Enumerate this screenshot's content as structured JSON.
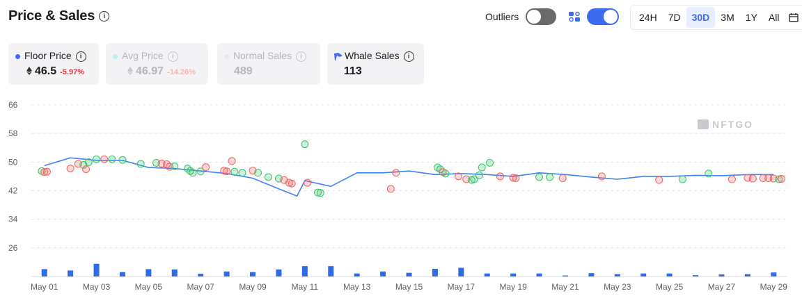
{
  "header": {
    "title": "Price & Sales",
    "outliers_label": "Outliers",
    "ranges": [
      "24H",
      "7D",
      "30D",
      "3M",
      "1Y",
      "All"
    ],
    "active_range": "30D"
  },
  "cards": {
    "floor": {
      "label": "Floor Price",
      "value": "46.5",
      "change": "-5.97%"
    },
    "avg": {
      "label": "Avg Price",
      "value": "46.97",
      "change": "-14.26%"
    },
    "normal": {
      "label": "Normal Sales",
      "value": "489"
    },
    "whale": {
      "label": "Whale Sales",
      "value": "113"
    }
  },
  "watermark": "NFTGO",
  "colors": {
    "accent": "#3d6bf0",
    "bar": "#2f6be8",
    "line": "#3b82f6",
    "negative": "#e23b3b",
    "buy": "#3bc46a",
    "sell": "#ef6161"
  },
  "chart_data": {
    "type": "line",
    "x_tick_labels": [
      "May 01",
      "May 03",
      "May 05",
      "May 07",
      "May 09",
      "May 11",
      "May 13",
      "May 15",
      "May 17",
      "May 19",
      "May 21",
      "May 23",
      "May 25",
      "May 27",
      "May 29"
    ],
    "y_ticks": [
      26,
      34,
      42,
      50,
      58,
      66
    ],
    "ylim": [
      18,
      66
    ],
    "xlim": [
      0.5,
      29.5
    ],
    "grid": true,
    "floor_price_line": {
      "x": [
        1,
        2,
        3,
        4,
        5,
        6,
        7,
        8,
        9,
        10,
        10.7,
        11,
        12,
        13,
        14,
        15,
        16,
        17,
        18,
        19,
        20,
        21,
        22,
        23,
        24,
        25,
        26,
        27,
        28,
        29
      ],
      "y": [
        49,
        51.2,
        50.5,
        50.5,
        48.5,
        48.2,
        47.5,
        46.8,
        45.5,
        42.5,
        40.5,
        44.8,
        43.2,
        47,
        47,
        47.5,
        46.5,
        46.8,
        46.5,
        46,
        47,
        46.5,
        45.8,
        45.2,
        46,
        46,
        46.3,
        46.2,
        46.5,
        46.5
      ]
    },
    "sales_points": [
      {
        "x": 0.9,
        "y": 47.5,
        "side": "buy"
      },
      {
        "x": 1.0,
        "y": 47.2,
        "side": "sell"
      },
      {
        "x": 1.1,
        "y": 47.3,
        "side": "sell"
      },
      {
        "x": 2.0,
        "y": 48.2,
        "side": "sell"
      },
      {
        "x": 2.3,
        "y": 49.5,
        "side": "sell"
      },
      {
        "x": 2.5,
        "y": 49.2,
        "side": "buy"
      },
      {
        "x": 2.6,
        "y": 48.0,
        "side": "sell"
      },
      {
        "x": 2.7,
        "y": 50.0,
        "side": "buy"
      },
      {
        "x": 3.0,
        "y": 50.8,
        "side": "buy"
      },
      {
        "x": 3.3,
        "y": 50.8,
        "side": "sell"
      },
      {
        "x": 3.6,
        "y": 50.8,
        "side": "buy"
      },
      {
        "x": 4.0,
        "y": 50.6,
        "side": "buy"
      },
      {
        "x": 4.7,
        "y": 49.5,
        "side": "buy"
      },
      {
        "x": 5.3,
        "y": 49.8,
        "side": "buy"
      },
      {
        "x": 5.5,
        "y": 49.6,
        "side": "sell"
      },
      {
        "x": 5.7,
        "y": 49.4,
        "side": "sell"
      },
      {
        "x": 5.8,
        "y": 48.7,
        "side": "sell"
      },
      {
        "x": 6.0,
        "y": 48.8,
        "side": "buy"
      },
      {
        "x": 6.5,
        "y": 48.2,
        "side": "buy"
      },
      {
        "x": 6.6,
        "y": 47.5,
        "side": "buy"
      },
      {
        "x": 6.7,
        "y": 47.0,
        "side": "buy"
      },
      {
        "x": 7.0,
        "y": 47.4,
        "side": "buy"
      },
      {
        "x": 7.2,
        "y": 48.6,
        "side": "sell"
      },
      {
        "x": 7.9,
        "y": 47.6,
        "side": "sell"
      },
      {
        "x": 8.0,
        "y": 47.4,
        "side": "sell"
      },
      {
        "x": 8.2,
        "y": 50.3,
        "side": "sell"
      },
      {
        "x": 8.3,
        "y": 47.3,
        "side": "buy"
      },
      {
        "x": 8.6,
        "y": 47.0,
        "side": "buy"
      },
      {
        "x": 9.0,
        "y": 47.6,
        "side": "sell"
      },
      {
        "x": 9.2,
        "y": 47.0,
        "side": "buy"
      },
      {
        "x": 9.6,
        "y": 45.8,
        "side": "buy"
      },
      {
        "x": 10.0,
        "y": 45.4,
        "side": "buy"
      },
      {
        "x": 10.2,
        "y": 45.0,
        "side": "sell"
      },
      {
        "x": 10.4,
        "y": 44.2,
        "side": "sell"
      },
      {
        "x": 10.5,
        "y": 44.0,
        "side": "sell"
      },
      {
        "x": 11.0,
        "y": 55.0,
        "side": "buy"
      },
      {
        "x": 11.1,
        "y": 44.2,
        "side": "sell"
      },
      {
        "x": 11.5,
        "y": 41.5,
        "side": "buy"
      },
      {
        "x": 11.6,
        "y": 41.4,
        "side": "buy"
      },
      {
        "x": 14.3,
        "y": 42.5,
        "side": "sell"
      },
      {
        "x": 14.5,
        "y": 47.0,
        "side": "sell"
      },
      {
        "x": 16.1,
        "y": 48.5,
        "side": "buy"
      },
      {
        "x": 16.2,
        "y": 48.0,
        "side": "buy"
      },
      {
        "x": 16.3,
        "y": 47.2,
        "side": "sell"
      },
      {
        "x": 16.4,
        "y": 46.8,
        "side": "buy"
      },
      {
        "x": 16.9,
        "y": 46.0,
        "side": "sell"
      },
      {
        "x": 17.2,
        "y": 45.2,
        "side": "sell"
      },
      {
        "x": 17.4,
        "y": 45.0,
        "side": "buy"
      },
      {
        "x": 17.5,
        "y": 45.2,
        "side": "buy"
      },
      {
        "x": 17.7,
        "y": 46.3,
        "side": "buy"
      },
      {
        "x": 17.8,
        "y": 48.5,
        "side": "buy"
      },
      {
        "x": 18.1,
        "y": 49.8,
        "side": "buy"
      },
      {
        "x": 18.5,
        "y": 46.0,
        "side": "sell"
      },
      {
        "x": 19.0,
        "y": 45.6,
        "side": "sell"
      },
      {
        "x": 19.1,
        "y": 45.5,
        "side": "sell"
      },
      {
        "x": 20.0,
        "y": 45.8,
        "side": "buy"
      },
      {
        "x": 20.4,
        "y": 45.8,
        "side": "buy"
      },
      {
        "x": 20.9,
        "y": 45.5,
        "side": "sell"
      },
      {
        "x": 22.4,
        "y": 46.0,
        "side": "sell"
      },
      {
        "x": 24.6,
        "y": 45.0,
        "side": "sell"
      },
      {
        "x": 25.5,
        "y": 45.2,
        "side": "buy"
      },
      {
        "x": 26.5,
        "y": 46.8,
        "side": "buy"
      },
      {
        "x": 27.4,
        "y": 45.2,
        "side": "sell"
      },
      {
        "x": 28.0,
        "y": 45.6,
        "side": "sell"
      },
      {
        "x": 28.2,
        "y": 45.4,
        "side": "sell"
      },
      {
        "x": 28.6,
        "y": 45.5,
        "side": "sell"
      },
      {
        "x": 28.8,
        "y": 45.5,
        "side": "sell"
      },
      {
        "x": 29.0,
        "y": 45.4,
        "side": "sell"
      },
      {
        "x": 29.2,
        "y": 45.2,
        "side": "buy"
      },
      {
        "x": 29.3,
        "y": 45.3,
        "side": "sell"
      }
    ],
    "volume_bars": [
      {
        "x": 1,
        "v": 22
      },
      {
        "x": 2,
        "v": 18
      },
      {
        "x": 3,
        "v": 38
      },
      {
        "x": 4,
        "v": 13
      },
      {
        "x": 5,
        "v": 22
      },
      {
        "x": 6,
        "v": 21
      },
      {
        "x": 7,
        "v": 8
      },
      {
        "x": 8,
        "v": 15
      },
      {
        "x": 9,
        "v": 13
      },
      {
        "x": 10,
        "v": 21
      },
      {
        "x": 11,
        "v": 31
      },
      {
        "x": 12,
        "v": 31
      },
      {
        "x": 13,
        "v": 9
      },
      {
        "x": 14,
        "v": 15
      },
      {
        "x": 15,
        "v": 11
      },
      {
        "x": 16,
        "v": 23
      },
      {
        "x": 17,
        "v": 26
      },
      {
        "x": 18,
        "v": 9
      },
      {
        "x": 19,
        "v": 9
      },
      {
        "x": 20,
        "v": 9
      },
      {
        "x": 21,
        "v": 3
      },
      {
        "x": 22,
        "v": 10
      },
      {
        "x": 23,
        "v": 7
      },
      {
        "x": 24,
        "v": 9
      },
      {
        "x": 25,
        "v": 9
      },
      {
        "x": 26,
        "v": 4
      },
      {
        "x": 27,
        "v": 6
      },
      {
        "x": 28,
        "v": 7
      },
      {
        "x": 29,
        "v": 12
      }
    ],
    "volume_max": 100
  }
}
